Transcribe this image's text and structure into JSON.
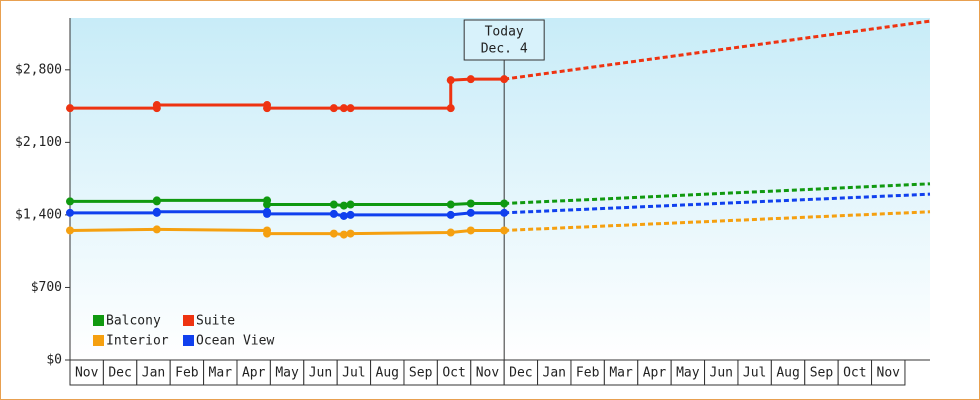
{
  "chart_data": {
    "type": "line",
    "xlim": [
      0,
      25.75
    ],
    "ylim": [
      0,
      3300
    ],
    "yticks": [
      {
        "value": 0,
        "label": "$0"
      },
      {
        "value": 700,
        "label": "$700"
      },
      {
        "value": 1400,
        "label": "$1,400"
      },
      {
        "value": 2100,
        "label": "$2,100"
      },
      {
        "value": 2800,
        "label": "$2,800"
      }
    ],
    "xticks": [
      {
        "value": 0.5,
        "label": "Nov"
      },
      {
        "value": 1.5,
        "label": "Dec"
      },
      {
        "value": 2.5,
        "label": "Jan"
      },
      {
        "value": 3.5,
        "label": "Feb"
      },
      {
        "value": 4.5,
        "label": "Mar"
      },
      {
        "value": 5.5,
        "label": "Apr"
      },
      {
        "value": 6.5,
        "label": "May"
      },
      {
        "value": 7.5,
        "label": "Jun"
      },
      {
        "value": 8.5,
        "label": "Jul"
      },
      {
        "value": 9.5,
        "label": "Aug"
      },
      {
        "value": 10.5,
        "label": "Sep"
      },
      {
        "value": 11.5,
        "label": "Oct"
      },
      {
        "value": 12.5,
        "label": "Nov"
      },
      {
        "value": 13.5,
        "label": "Dec"
      },
      {
        "value": 14.5,
        "label": "Jan"
      },
      {
        "value": 15.5,
        "label": "Feb"
      },
      {
        "value": 16.5,
        "label": "Mar"
      },
      {
        "value": 17.5,
        "label": "Apr"
      },
      {
        "value": 18.5,
        "label": "May"
      },
      {
        "value": 19.5,
        "label": "Jun"
      },
      {
        "value": 20.5,
        "label": "Jul"
      },
      {
        "value": 21.5,
        "label": "Aug"
      },
      {
        "value": 22.5,
        "label": "Sep"
      },
      {
        "value": 23.5,
        "label": "Oct"
      },
      {
        "value": 24.5,
        "label": "Nov"
      }
    ],
    "grid": false,
    "annotation": {
      "x": 13,
      "text": [
        "Today",
        "Dec. 4"
      ]
    },
    "series": [
      {
        "name": "Balcony",
        "color": "#109910",
        "x": [
          0,
          2.6,
          2.6,
          5.9,
          5.9,
          7.9,
          8.2,
          8.4,
          11.4,
          12,
          13
        ],
        "values": [
          1530,
          1530,
          1540,
          1540,
          1500,
          1500,
          1490,
          1500,
          1500,
          1510,
          1510
        ],
        "projection": {
          "x": [
            13,
            25.75
          ],
          "values": [
            1510,
            1700
          ]
        }
      },
      {
        "name": "Suite",
        "color": "#ee3311",
        "x": [
          0,
          2.6,
          2.6,
          5.9,
          5.9,
          7.9,
          8.2,
          8.4,
          11.4,
          11.4,
          12,
          13
        ],
        "values": [
          2430,
          2430,
          2460,
          2460,
          2430,
          2430,
          2430,
          2430,
          2430,
          2700,
          2710,
          2710
        ],
        "projection": {
          "x": [
            13,
            25.75
          ],
          "values": [
            2710,
            3270
          ]
        }
      },
      {
        "name": "Interior",
        "color": "#f5a010",
        "x": [
          0,
          2.6,
          5.9,
          5.9,
          7.9,
          8.2,
          8.4,
          11.4,
          12,
          13
        ],
        "values": [
          1250,
          1260,
          1250,
          1220,
          1220,
          1210,
          1220,
          1230,
          1250,
          1250
        ],
        "projection": {
          "x": [
            13,
            25.75
          ],
          "values": [
            1250,
            1430
          ]
        }
      },
      {
        "name": "Ocean View",
        "color": "#1040ee",
        "x": [
          0,
          2.6,
          2.6,
          5.9,
          5.9,
          7.9,
          8.2,
          8.4,
          11.4,
          12,
          13
        ],
        "values": [
          1420,
          1420,
          1430,
          1430,
          1410,
          1410,
          1390,
          1400,
          1400,
          1420,
          1420
        ],
        "projection": {
          "x": [
            13,
            25.75
          ],
          "values": [
            1420,
            1600
          ]
        }
      }
    ]
  }
}
